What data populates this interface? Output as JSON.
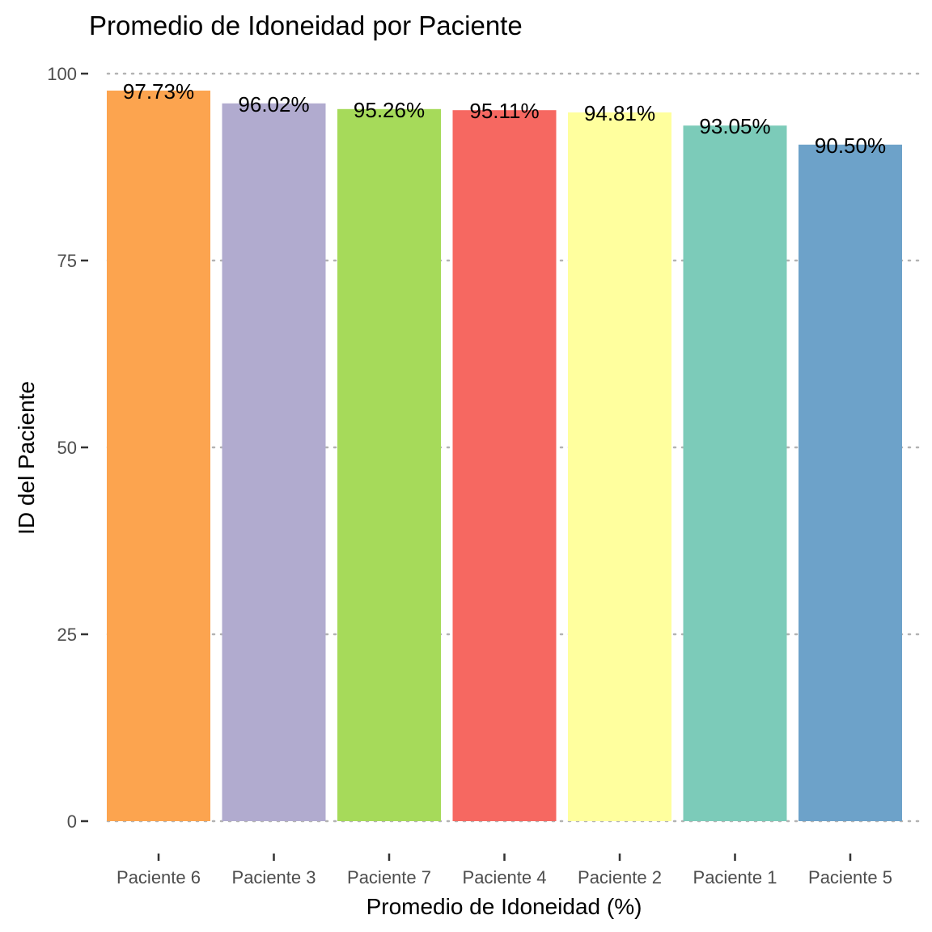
{
  "chart_data": {
    "type": "bar",
    "title": "Promedio de Idoneidad por Paciente",
    "xlabel": "Promedio de Idoneidad (%)",
    "ylabel": "ID del Paciente",
    "categories": [
      "Paciente 6",
      "Paciente 3",
      "Paciente 7",
      "Paciente 4",
      "Paciente 2",
      "Paciente 1",
      "Paciente 5"
    ],
    "values": [
      97.73,
      96.02,
      95.26,
      95.11,
      94.81,
      93.05,
      90.5
    ],
    "value_labels": [
      "97.73%",
      "96.02%",
      "95.26%",
      "95.11%",
      "94.81%",
      "93.05%",
      "90.50%"
    ],
    "colors": [
      "#FCA44F",
      "#B1ABCF",
      "#A6DA5A",
      "#F66861",
      "#FFFF9E",
      "#7CCBB9",
      "#6DA2C9"
    ],
    "ylim": [
      0,
      100
    ],
    "yticks": [
      0,
      25,
      50,
      75,
      100
    ],
    "ytick_labels": [
      "0",
      "25",
      "50",
      "75",
      "100"
    ],
    "grid": "horizontal-dotted",
    "legend": "none"
  }
}
